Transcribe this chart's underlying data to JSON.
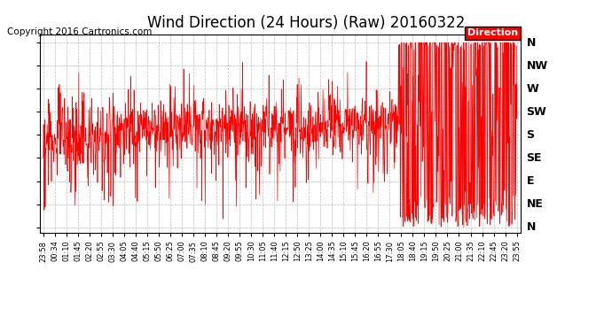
{
  "title": "Wind Direction (24 Hours) (Raw) 20160322",
  "copyright": "Copyright 2016 Cartronics.com",
  "legend_label": "Direction",
  "background_color": "#ffffff",
  "plot_bg_color": "#ffffff",
  "line_color": "#ff0000",
  "gray_line_color": "#555555",
  "grid_color": "#aaaaaa",
  "grid_style": "--",
  "ytick_labels": [
    "N",
    "NE",
    "E",
    "SE",
    "S",
    "SW",
    "W",
    "NW",
    "N"
  ],
  "ytick_values": [
    0,
    45,
    90,
    135,
    180,
    225,
    270,
    315,
    360
  ],
  "ylim": [
    -10,
    375
  ],
  "xtick_labels": [
    "23:58",
    "00:34",
    "01:10",
    "01:45",
    "02:20",
    "02:55",
    "03:30",
    "04:05",
    "04:40",
    "05:15",
    "05:50",
    "06:25",
    "07:00",
    "07:35",
    "08:10",
    "08:45",
    "09:20",
    "09:55",
    "10:30",
    "11:05",
    "11:40",
    "12:15",
    "12:50",
    "13:25",
    "14:00",
    "14:35",
    "15:10",
    "15:45",
    "16:20",
    "16:55",
    "17:30",
    "18:05",
    "18:40",
    "19:15",
    "19:50",
    "20:25",
    "21:00",
    "21:35",
    "22:10",
    "22:45",
    "23:20",
    "23:55"
  ],
  "title_fontsize": 12,
  "copyright_fontsize": 7.5,
  "axis_label_fontsize": 9,
  "legend_fontsize": 8,
  "figsize": [
    6.9,
    3.75
  ],
  "dpi": 100
}
